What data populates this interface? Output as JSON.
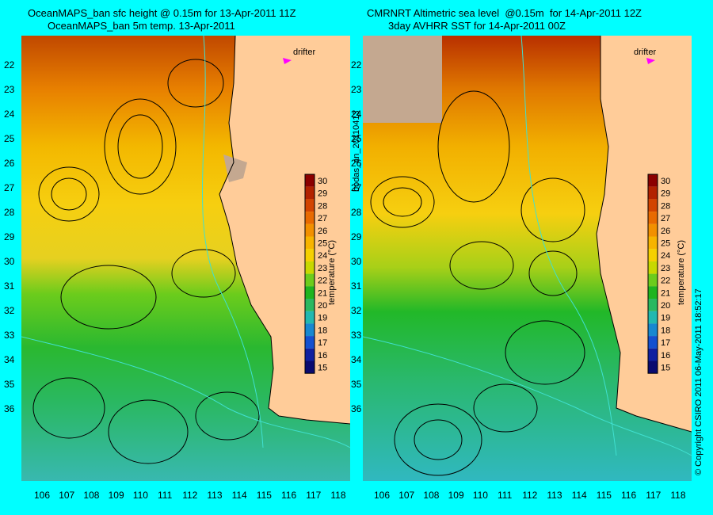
{
  "left": {
    "title_line1": "OceanMAPS_ban sfc height @ 0.15m for 13-Apr-2011 11Z",
    "title_line2": "OceanMAPS_ban 5m temp. 13-Apr-2011",
    "drifter_label": "drifter"
  },
  "right": {
    "title_line1": "CMRNRT Altimetric sea level  @0.15m  for 14-Apr-2011 12Z",
    "title_line2": "3day AVHRR SST for 14-Apr-2011 00Z",
    "drifter_label": "drifter"
  },
  "side_label_mid": "bodas_an_20110413",
  "side_label_right": "© Copyright CSIRO 2011   06-May-2011 18:52:17",
  "colorbar": {
    "title": "temperature (°C)",
    "ticks": [
      "30",
      "29",
      "28",
      "27",
      "26",
      "25",
      "24",
      "23",
      "22",
      "21",
      "20",
      "19",
      "18",
      "17",
      "16",
      "15"
    ],
    "colors": [
      "#8b0000",
      "#b22200",
      "#d24400",
      "#e86a00",
      "#f29000",
      "#f7b400",
      "#f5d000",
      "#c8d800",
      "#6ccc1c",
      "#1fb41f",
      "#2ab860",
      "#22b8b0",
      "#1888d0",
      "#1450d0",
      "#1020a0",
      "#0a0a70"
    ]
  },
  "lat_ticks": [
    "22",
    "23",
    "24",
    "25",
    "26",
    "27",
    "28",
    "29",
    "30",
    "31",
    "32",
    "33",
    "34",
    "35",
    "36"
  ],
  "lon_ticks": [
    "106",
    "107",
    "108",
    "109",
    "110",
    "111",
    "112",
    "113",
    "114",
    "115",
    "116",
    "117",
    "118"
  ],
  "colors": {
    "background": "#00ffff",
    "land": "#ffcc99",
    "contour": "#000000",
    "coast": "#40e0d0",
    "drifter": "#ff00ff"
  }
}
